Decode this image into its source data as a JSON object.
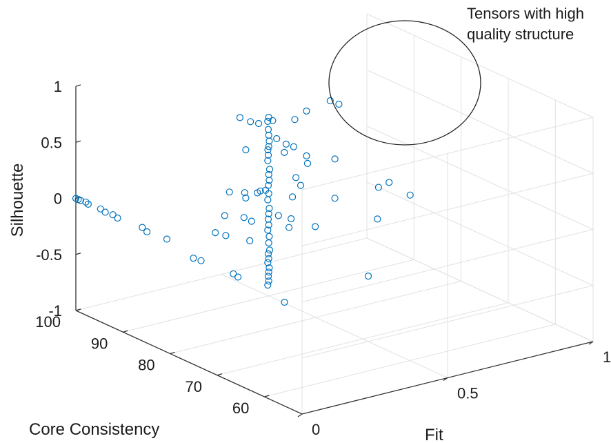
{
  "chart_data": {
    "type": "scatter3d",
    "xlabel": "Fit",
    "ylabel": "Core Consistency",
    "zlabel": "Silhouette",
    "x_ticks": [
      "0",
      "0.5",
      "1"
    ],
    "y_ticks": [
      "100",
      "90",
      "80",
      "70",
      "60"
    ],
    "z_ticks": [
      "1",
      "0.5",
      "0",
      "-0.5",
      "-1"
    ],
    "xlim": [
      0,
      1
    ],
    "ylim": [
      52,
      100
    ],
    "zlim": [
      -1,
      1
    ],
    "grid": true,
    "marker_color": "#0072BD",
    "marker": "circle-open",
    "annotation": {
      "lines": [
        "Tensors with high",
        "quality structure"
      ]
    },
    "points": [
      [
        0.0,
        100,
        0.0
      ],
      [
        0.0,
        99.5,
        0.0
      ],
      [
        0.0,
        99.0,
        0.0
      ],
      [
        0.01,
        98.5,
        -0.01
      ],
      [
        0.01,
        98.0,
        -0.02
      ],
      [
        0.02,
        96.0,
        -0.03
      ],
      [
        0.02,
        95.0,
        -0.04
      ],
      [
        0.03,
        94.0,
        -0.05
      ],
      [
        0.03,
        93.0,
        -0.06
      ],
      [
        0.05,
        89.0,
        -0.08
      ],
      [
        0.05,
        88.0,
        -0.1
      ],
      [
        0.07,
        85.0,
        -0.12
      ],
      [
        0.08,
        80.0,
        -0.2
      ],
      [
        0.09,
        79.0,
        -0.21
      ],
      [
        0.12,
        74.0,
        -0.25
      ],
      [
        0.12,
        73.0,
        -0.26
      ],
      [
        0.15,
        65.0,
        -0.35
      ],
      [
        0.24,
        80.0,
        0.95
      ],
      [
        0.26,
        79.0,
        0.92
      ],
      [
        0.28,
        78.5,
        0.9
      ],
      [
        0.32,
        78.0,
        0.91
      ],
      [
        0.26,
        80.0,
        0.65
      ],
      [
        0.32,
        79.0,
        0.63
      ],
      [
        0.35,
        77.0,
        0.7
      ],
      [
        0.36,
        76.0,
        0.69
      ],
      [
        0.35,
        79.0,
        0.71
      ],
      [
        0.22,
        81.0,
        0.28
      ],
      [
        0.26,
        80.0,
        0.22
      ],
      [
        0.24,
        79.0,
        0.3
      ],
      [
        0.3,
        80.0,
        0.24
      ],
      [
        0.31,
        80.0,
        0.25
      ],
      [
        0.32,
        79.5,
        0.26
      ],
      [
        0.22,
        82.0,
        0.05
      ],
      [
        0.28,
        80.0,
        0.0
      ],
      [
        0.27,
        81.0,
        0.02
      ],
      [
        0.34,
        78.0,
        0.05
      ],
      [
        0.29,
        81.0,
        -0.2
      ],
      [
        0.36,
        77.0,
        -0.05
      ],
      [
        0.22,
        84.0,
        -0.14
      ],
      [
        0.24,
        83.0,
        -0.16
      ],
      [
        0.3,
        77.6,
        0.96
      ],
      [
        0.3,
        77.8,
        0.92
      ],
      [
        0.3,
        77.7,
        0.85
      ],
      [
        0.3,
        77.6,
        0.8
      ],
      [
        0.3,
        77.5,
        0.75
      ],
      [
        0.3,
        77.6,
        0.7
      ],
      [
        0.3,
        77.7,
        0.62
      ],
      [
        0.3,
        77.8,
        0.57
      ],
      [
        0.3,
        77.4,
        0.5
      ],
      [
        0.3,
        77.6,
        0.45
      ],
      [
        0.3,
        77.5,
        0.4
      ],
      [
        0.3,
        77.7,
        0.35
      ],
      [
        0.3,
        77.6,
        0.28
      ],
      [
        0.3,
        77.8,
        0.22
      ],
      [
        0.3,
        77.5,
        0.15
      ],
      [
        0.3,
        77.6,
        0.1
      ],
      [
        0.3,
        77.7,
        0.05
      ],
      [
        0.3,
        77.6,
        0.0
      ],
      [
        0.3,
        77.8,
        -0.05
      ],
      [
        0.3,
        77.5,
        -0.1
      ],
      [
        0.3,
        77.6,
        -0.16
      ],
      [
        0.3,
        77.4,
        -0.22
      ],
      [
        0.3,
        77.7,
        -0.26
      ],
      [
        0.3,
        77.6,
        -0.3
      ],
      [
        0.3,
        77.8,
        -0.34
      ],
      [
        0.3,
        77.5,
        -0.38
      ],
      [
        0.3,
        77.6,
        -0.42
      ],
      [
        0.3,
        77.7,
        -0.46
      ],
      [
        0.3,
        77.6,
        -0.5
      ],
      [
        0.3,
        77.8,
        -0.54
      ],
      [
        0.42,
        77.0,
        0.95
      ],
      [
        0.38,
        77.0,
        0.9
      ],
      [
        0.36,
        78.0,
        0.6
      ],
      [
        0.42,
        77.0,
        0.55
      ],
      [
        0.44,
        78.0,
        0.45
      ],
      [
        0.4,
        78.0,
        0.35
      ],
      [
        0.4,
        77.0,
        0.3
      ],
      [
        0.38,
        77.5,
        0.2
      ],
      [
        0.38,
        77.8,
        0.0
      ],
      [
        0.45,
        77.0,
        -0.1
      ],
      [
        0.55,
        80.0,
        0.9
      ],
      [
        0.58,
        80.0,
        0.85
      ],
      [
        0.55,
        79.0,
        0.4
      ],
      [
        0.55,
        79.0,
        0.05
      ],
      [
        0.7,
        79.0,
        0.05
      ],
      [
        0.72,
        78.0,
        0.1
      ],
      [
        0.68,
        78.0,
        -0.2
      ],
      [
        0.76,
        76.0,
        0.0
      ],
      [
        0.6,
        75.0,
        -0.6
      ]
    ]
  }
}
